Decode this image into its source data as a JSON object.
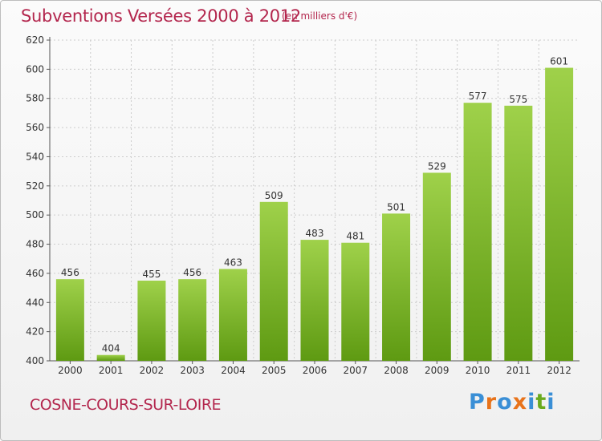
{
  "header": {
    "title": "Subventions Versées 2000 à 2012",
    "subtitle": "(en milliers d'€)"
  },
  "footer": {
    "city": "COSNE-COURS-SUR-LOIRE",
    "logo_text": "Proxiti"
  },
  "colors": {
    "title": "#b3264d",
    "bar_top": "#9fd14a",
    "bar_bottom": "#5e9a12",
    "grid": "#cccccc",
    "logo_letters": [
      "#3a8fd6",
      "#e8731a",
      "#3a8fd6",
      "#e8731a",
      "#3a8fd6",
      "#6aaa1e",
      "#3a8fd6"
    ]
  },
  "chart_data": {
    "type": "bar",
    "categories": [
      "2000",
      "2001",
      "2002",
      "2003",
      "2004",
      "2005",
      "2006",
      "2007",
      "2008",
      "2009",
      "2010",
      "2011",
      "2012"
    ],
    "values": [
      456,
      404,
      455,
      456,
      463,
      509,
      483,
      481,
      501,
      529,
      577,
      575,
      601
    ],
    "title": "Subventions Versées 2000 à 2012",
    "ylim": [
      400,
      620
    ],
    "yticks": [
      400,
      420,
      440,
      460,
      480,
      500,
      520,
      540,
      560,
      580,
      600,
      620
    ],
    "grid": true,
    "legend": "none"
  }
}
